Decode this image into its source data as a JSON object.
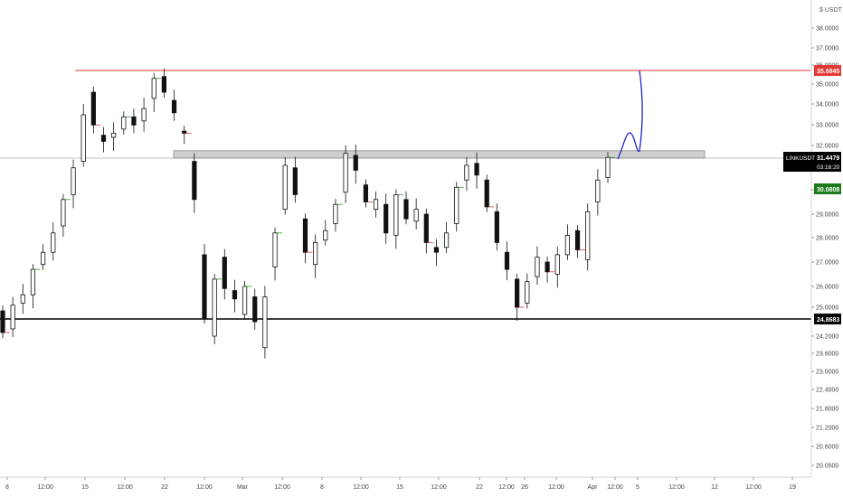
{
  "chart_data": {
    "type": "candlestick",
    "symbol": "LINKUSDT",
    "quote_currency": "USDT",
    "currency_label": "USDT",
    "y_axis_ticks": [
      "38.0000",
      "37.0000",
      "36.0000",
      "35.0000",
      "34.0000",
      "33.0000",
      "32.0000",
      "31.0000",
      "30.0000",
      "29.0000",
      "28.0000",
      "27.0000",
      "26.0000",
      "25.0000",
      "24.2000",
      "23.6000",
      "23.0000",
      "22.4000",
      "21.8000",
      "21.2000",
      "20.6000",
      "20.0500"
    ],
    "x_axis_ticks": [
      "8",
      "12:00",
      "15",
      "12:00",
      "22",
      "12:00",
      "Mar",
      "12:00",
      "8",
      "12:00",
      "15",
      "12:00",
      "22",
      "12:00",
      "26",
      "12:00",
      "Apr",
      "12:00",
      "5",
      "12:00",
      "12",
      "12:00",
      "19"
    ],
    "levels": [
      {
        "label": "35.6945",
        "value": 35.6945,
        "color": "#e53935",
        "style": "resistance"
      },
      {
        "label": "24.8683",
        "value": 24.8683,
        "color": "#000000",
        "style": "support"
      }
    ],
    "range_zone": {
      "low": 31.55,
      "high": 31.78,
      "color": "#9e9e9e"
    },
    "current_price": {
      "label": "31.4479",
      "value": 31.4479,
      "symbol_label": "LINKUSDT",
      "countdown": "03:16:20",
      "color": "#000000"
    },
    "marker_price": {
      "label": "30.0808",
      "value": 30.0808,
      "color": "#1b7a1b"
    },
    "projection": {
      "color": "#2222cc",
      "points": [
        [
          31.45,
          31.75
        ],
        [
          31.9,
          32.5
        ],
        [
          32.05,
          31.7
        ],
        [
          32.15,
          34.6
        ],
        [
          32.2,
          35.6
        ]
      ]
    },
    "candles": [
      [
        0,
        24.9,
        24.3
      ],
      [
        1,
        24.4,
        25.1
      ],
      [
        2,
        25.2,
        25.6
      ],
      [
        3,
        25.6,
        26.7
      ],
      [
        4,
        26.9,
        27.4
      ],
      [
        5,
        27.4,
        28.2
      ],
      [
        6,
        28.5,
        29.6
      ],
      [
        7,
        29.8,
        30.9
      ],
      [
        8,
        31.2,
        33.5
      ],
      [
        9,
        34.6,
        33.0
      ],
      [
        10,
        32.5,
        32.2
      ],
      [
        11,
        32.4,
        32.6
      ],
      [
        12,
        32.8,
        33.4
      ],
      [
        13,
        33.4,
        33.0
      ],
      [
        14,
        33.2,
        33.8
      ],
      [
        15,
        34.3,
        35.3
      ],
      [
        16,
        35.4,
        34.6
      ],
      [
        17,
        34.2,
        33.6
      ],
      [
        18,
        32.7,
        32.6
      ],
      [
        19,
        31.2,
        29.6
      ],
      [
        20,
        27.3,
        24.7
      ],
      [
        21,
        24.2,
        26.3
      ],
      [
        22,
        27.2,
        25.9
      ],
      [
        23,
        25.8,
        25.4
      ],
      [
        24,
        24.8,
        26.0
      ],
      [
        25,
        25.5,
        24.6
      ],
      [
        26,
        23.8,
        25.5
      ],
      [
        27,
        26.8,
        28.2
      ],
      [
        28,
        29.2,
        31.0
      ],
      [
        29,
        30.9,
        29.8
      ],
      [
        30,
        28.8,
        27.4
      ],
      [
        31,
        26.9,
        27.8
      ],
      [
        32,
        27.9,
        28.3
      ],
      [
        33,
        28.6,
        29.4
      ],
      [
        34,
        29.9,
        31.6
      ],
      [
        35,
        31.5,
        30.8
      ],
      [
        36,
        30.2,
        29.5
      ],
      [
        37,
        29.2,
        29.6
      ],
      [
        38,
        29.4,
        28.2
      ],
      [
        39,
        28.1,
        29.8
      ],
      [
        40,
        29.6,
        28.8
      ],
      [
        41,
        28.7,
        29.2
      ],
      [
        42,
        29.0,
        27.8
      ],
      [
        43,
        27.6,
        27.4
      ],
      [
        44,
        27.6,
        28.2
      ],
      [
        45,
        28.6,
        30.1
      ],
      [
        46,
        30.4,
        31.0
      ],
      [
        47,
        31.1,
        30.6
      ],
      [
        48,
        30.4,
        29.3
      ],
      [
        49,
        29.1,
        27.8
      ],
      [
        50,
        27.4,
        26.7
      ],
      [
        51,
        26.3,
        25.0
      ],
      [
        52,
        25.2,
        26.2
      ],
      [
        53,
        26.4,
        27.2
      ],
      [
        54,
        27.0,
        26.6
      ],
      [
        55,
        26.5,
        27.3
      ],
      [
        56,
        27.3,
        28.1
      ],
      [
        57,
        28.3,
        27.5
      ],
      [
        58,
        27.1,
        29.1
      ],
      [
        59,
        29.5,
        30.4
      ],
      [
        60,
        30.5,
        31.4
      ]
    ]
  }
}
